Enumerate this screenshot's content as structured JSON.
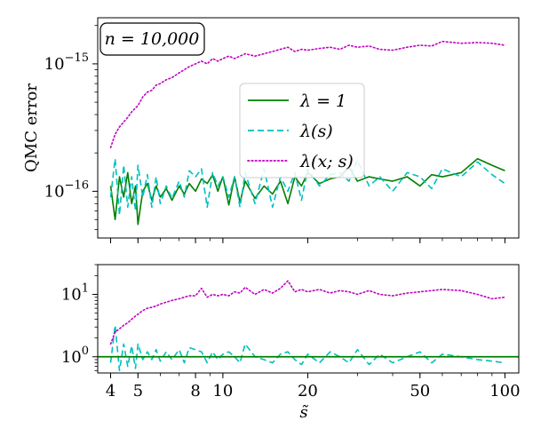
{
  "chart_data": [
    {
      "panel": "top",
      "type": "line",
      "ylabel": "QMC error",
      "xlabel": "",
      "xscale": "log",
      "yscale": "log",
      "xlim": [
        3.6,
        112
      ],
      "ylim": [
        4.3e-17,
        2.3e-15
      ],
      "xticks": [
        4,
        5,
        8,
        10,
        20,
        50,
        100
      ],
      "yticks": [
        {
          "value": 1e-16,
          "label_base": "10",
          "label_exp": "−16"
        },
        {
          "value": 1e-15,
          "label_base": "10",
          "label_exp": "−15"
        }
      ],
      "annotation": "n = 10,000",
      "legend_position": "center-right",
      "series": [
        {
          "name": "λ = 1",
          "color": "#008000",
          "dash": "solid",
          "x": [
            4,
            4.15,
            4.3,
            4.45,
            4.6,
            4.75,
            4.9,
            5,
            5.2,
            5.4,
            5.6,
            5.8,
            6,
            6.3,
            6.6,
            7,
            7.3,
            7.6,
            8,
            8.4,
            8.8,
            9.2,
            9.6,
            10,
            10.5,
            11,
            11.5,
            12,
            13,
            14,
            15,
            16,
            17,
            18,
            19,
            20,
            22,
            24,
            26,
            28,
            30,
            33,
            36,
            40,
            45,
            50,
            55,
            60,
            70,
            80,
            90,
            100
          ],
          "values": [
            1.1e-16,
            6e-17,
            1.3e-16,
            9e-17,
            1.4e-16,
            8e-17,
            1.1e-16,
            5.5e-17,
            1e-16,
            1.15e-16,
            8.5e-17,
            1.1e-16,
            9e-17,
            1.05e-16,
            8.5e-17,
            1.1e-16,
            9.5e-17,
            1.15e-16,
            1e-16,
            1.25e-16,
            1.15e-16,
            1.35e-16,
            1e-16,
            1.3e-16,
            7.8e-17,
            1.3e-16,
            8.2e-17,
            1.2e-16,
            8.8e-17,
            1.1e-16,
            9.5e-17,
            1.2e-16,
            8e-17,
            1.3e-16,
            1.1e-16,
            1.4e-16,
            1.15e-16,
            1.25e-16,
            1.3e-16,
            1.55e-16,
            1.2e-16,
            1.3e-16,
            1.25e-16,
            1.2e-16,
            1.3e-16,
            1.1e-16,
            1.35e-16,
            1.3e-16,
            1.4e-16,
            1.8e-16,
            1.6e-16,
            1.45e-16
          ]
        },
        {
          "name": "λ(s)",
          "color": "#00bfbf",
          "dash": "dashed",
          "x": [
            4,
            4.15,
            4.3,
            4.45,
            4.6,
            4.75,
            4.9,
            5,
            5.2,
            5.4,
            5.6,
            5.8,
            6,
            6.3,
            6.6,
            7,
            7.3,
            7.6,
            8,
            8.4,
            8.8,
            9.2,
            9.6,
            10,
            10.5,
            11,
            11.5,
            12,
            13,
            14,
            15,
            16,
            17,
            18,
            19,
            20,
            22,
            24,
            26,
            28,
            30,
            33,
            36,
            40,
            45,
            50,
            55,
            60,
            70,
            80,
            90,
            100
          ],
          "values": [
            9e-17,
            1.8e-16,
            6.5e-17,
            1.6e-16,
            7.5e-17,
            1.3e-16,
            7e-17,
            1.6e-16,
            9e-17,
            1.35e-16,
            7.5e-17,
            1.3e-16,
            8e-17,
            1.1e-16,
            8.8e-17,
            1.2e-16,
            9e-17,
            1.45e-16,
            1.3e-16,
            1.5e-16,
            7.5e-17,
            1.4e-16,
            1.1e-16,
            1.3e-16,
            9e-17,
            1.3e-16,
            7.5e-17,
            1.4e-16,
            8e-17,
            1.5e-16,
            7.5e-17,
            1.3e-16,
            1e-16,
            1.4e-16,
            8.5e-17,
            1.5e-16,
            1.1e-16,
            1.35e-16,
            1.4e-16,
            1.2e-16,
            1.75e-16,
            1.1e-16,
            1.3e-16,
            1e-16,
            1.4e-16,
            1.3e-16,
            1.05e-16,
            1.5e-16,
            1.3e-16,
            1.7e-16,
            1.35e-16,
            1.15e-16
          ]
        },
        {
          "name": "λ(x; s)",
          "color": "#bf00bf",
          "dash": "dotted",
          "x": [
            4,
            4.15,
            4.3,
            4.45,
            4.6,
            4.75,
            4.9,
            5,
            5.2,
            5.4,
            5.6,
            5.8,
            6,
            6.3,
            6.6,
            7,
            7.3,
            7.6,
            8,
            8.4,
            8.8,
            9.2,
            9.6,
            10,
            10.5,
            11,
            11.5,
            12,
            13,
            14,
            15,
            16,
            17,
            18,
            19,
            20,
            22,
            24,
            26,
            28,
            30,
            33,
            36,
            40,
            45,
            50,
            55,
            60,
            70,
            80,
            90,
            100
          ],
          "values": [
            2.2e-16,
            2.8e-16,
            3.2e-16,
            3.5e-16,
            3.8e-16,
            4.2e-16,
            4.5e-16,
            4.7e-16,
            5.5e-16,
            6e-16,
            6.2e-16,
            6.8e-16,
            7e-16,
            7.5e-16,
            7.8e-16,
            8.5e-16,
            9e-16,
            9.5e-16,
            1e-15,
            1.05e-15,
            1e-15,
            1.1e-15,
            1.05e-15,
            1.1e-15,
            1.15e-15,
            1.1e-15,
            1.15e-15,
            1.2e-15,
            1.15e-15,
            1.2e-15,
            1.25e-15,
            1.3e-15,
            1.35e-15,
            1.25e-15,
            1.3e-15,
            1.28e-15,
            1.32e-15,
            1.35e-15,
            1.3e-15,
            1.4e-15,
            1.35e-15,
            1.38e-15,
            1.3e-15,
            1.28e-15,
            1.35e-15,
            1.4e-15,
            1.38e-15,
            1.5e-15,
            1.45e-15,
            1.47e-15,
            1.45e-15,
            1.4e-15
          ]
        }
      ]
    },
    {
      "panel": "bottom",
      "type": "line",
      "xlabel": "s̃",
      "ylabel": "",
      "xscale": "log",
      "yscale": "log",
      "xlim": [
        3.6,
        112
      ],
      "ylim": [
        0.55,
        30
      ],
      "xticks": [
        4,
        5,
        8,
        10,
        20,
        50,
        100
      ],
      "yticks": [
        {
          "value": 1,
          "label_base": "10",
          "label_exp": "0"
        },
        {
          "value": 10,
          "label_base": "10",
          "label_exp": "1"
        }
      ],
      "reference_line": {
        "y": 1,
        "color": "#008000"
      },
      "series": [
        {
          "name": "λ(s)",
          "color": "#00bfbf",
          "dash": "dashed",
          "x": [
            4,
            4.15,
            4.3,
            4.45,
            4.6,
            4.75,
            4.9,
            5,
            5.2,
            5.4,
            5.6,
            5.8,
            6,
            6.3,
            6.6,
            7,
            7.3,
            7.6,
            8,
            8.4,
            8.8,
            9.2,
            9.6,
            10,
            10.5,
            11,
            11.5,
            12,
            13,
            14,
            15,
            16,
            17,
            18,
            19,
            20,
            22,
            24,
            26,
            28,
            30,
            33,
            36,
            40,
            45,
            50,
            55,
            60,
            70,
            80,
            90,
            100
          ],
          "values": [
            0.8,
            3.2,
            0.6,
            1.6,
            0.7,
            1.5,
            0.65,
            1.6,
            0.9,
            1.2,
            0.9,
            1.3,
            0.85,
            1.2,
            0.9,
            1.3,
            0.8,
            1.4,
            1.3,
            1.2,
            0.8,
            1.2,
            0.9,
            1.1,
            1.2,
            1.0,
            0.8,
            1.6,
            1.0,
            0.9,
            0.8,
            1.1,
            1.2,
            0.9,
            0.75,
            1.1,
            0.8,
            1.2,
            1.0,
            0.8,
            1.3,
            0.75,
            1.1,
            0.8,
            1.0,
            1.2,
            0.8,
            1.1,
            1.0,
            0.9,
            0.85,
            0.8
          ]
        },
        {
          "name": "λ(x; s)",
          "color": "#bf00bf",
          "dash": "dotted",
          "x": [
            4,
            4.15,
            4.3,
            4.45,
            4.6,
            4.75,
            4.9,
            5,
            5.2,
            5.4,
            5.6,
            5.8,
            6,
            6.3,
            6.6,
            7,
            7.3,
            7.6,
            8,
            8.4,
            8.8,
            9.2,
            9.6,
            10,
            10.5,
            11,
            11.5,
            12,
            13,
            14,
            15,
            16,
            17,
            18,
            19,
            20,
            22,
            24,
            26,
            28,
            30,
            33,
            36,
            40,
            45,
            50,
            55,
            60,
            70,
            80,
            90,
            100
          ],
          "values": [
            1.6,
            2.5,
            2.8,
            3.2,
            3.5,
            4.0,
            4.5,
            4.8,
            5.5,
            6.0,
            6.2,
            6.5,
            7.0,
            7.5,
            8.0,
            8.5,
            9.0,
            9.5,
            9.5,
            12.5,
            9.0,
            10.0,
            9.5,
            10.0,
            9.5,
            11.0,
            10.5,
            13.0,
            10.0,
            12.0,
            10.5,
            12.5,
            16.5,
            11.0,
            12.0,
            11.0,
            12.0,
            10.5,
            11.5,
            11.0,
            10.0,
            11.5,
            10.0,
            9.5,
            10.5,
            11.0,
            11.5,
            12.0,
            11.5,
            10.0,
            8.5,
            9.0
          ]
        }
      ]
    }
  ]
}
